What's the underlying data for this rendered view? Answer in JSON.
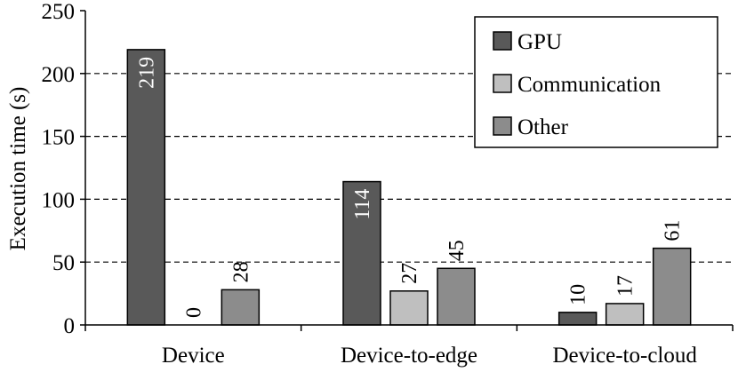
{
  "chart_data": {
    "type": "bar",
    "categories": [
      "Device",
      "Device-to-edge",
      "Device-to-cloud"
    ],
    "series": [
      {
        "name": "GPU",
        "values": [
          219,
          114,
          10
        ],
        "color": "#595959"
      },
      {
        "name": "Communication",
        "values": [
          0,
          27,
          17
        ],
        "color": "#bfbfbf"
      },
      {
        "name": "Other",
        "values": [
          28,
          45,
          61
        ],
        "color": "#8c8c8c"
      }
    ],
    "title": "",
    "xlabel": "",
    "ylabel": "Execution time (s)",
    "ylim": [
      0,
      250
    ],
    "yticks": [
      0,
      50,
      100,
      150,
      200,
      250
    ],
    "grid": "horizontal dashed",
    "legend": "top-right"
  }
}
